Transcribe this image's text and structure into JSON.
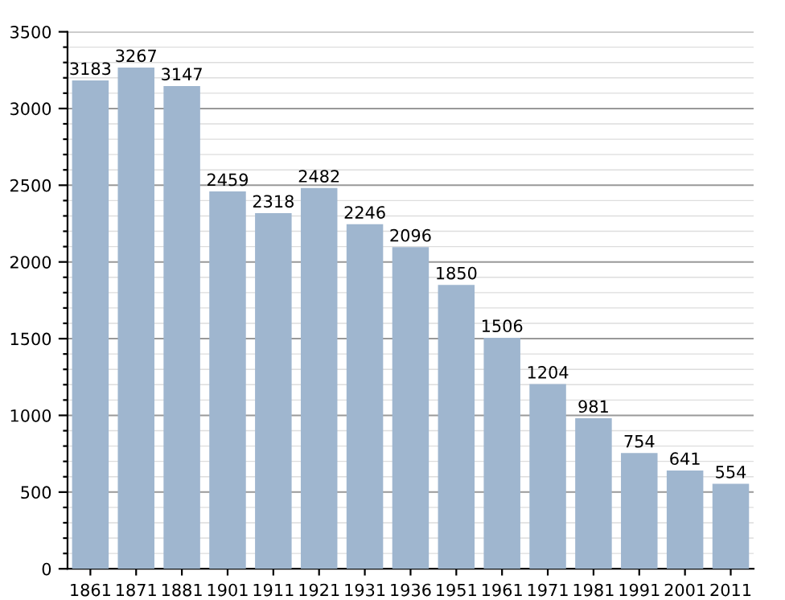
{
  "chart_data": {
    "type": "bar",
    "categories": [
      "1861",
      "1871",
      "1881",
      "1901",
      "1911",
      "1921",
      "1931",
      "1936",
      "1951",
      "1961",
      "1971",
      "1981",
      "1991",
      "2001",
      "2011"
    ],
    "values": [
      3183,
      3267,
      3147,
      2459,
      2318,
      2482,
      2246,
      2096,
      1850,
      1506,
      1204,
      981,
      754,
      641,
      554
    ],
    "color": "#9fb6cf",
    "ylim": [
      0,
      3500
    ],
    "yticks": [
      0,
      {
        "value": 100,
        "label": null
      },
      {
        "value": 200,
        "label": null
      },
      {
        "value": 300,
        "label": null
      },
      {
        "value": 400,
        "label": null
      },
      500,
      {
        "value": 600,
        "label": null
      },
      {
        "value": 700,
        "label": null
      },
      {
        "value": 800,
        "label": null
      },
      {
        "value": 900,
        "label": null
      },
      1000,
      {
        "value": 1100,
        "label": null
      },
      {
        "value": 1200,
        "label": null
      },
      {
        "value": 1300,
        "label": null
      },
      {
        "value": 1400,
        "label": null
      },
      1500,
      {
        "value": 1600,
        "label": null
      },
      {
        "value": 1700,
        "label": null
      },
      {
        "value": 1800,
        "label": null
      },
      {
        "value": 1900,
        "label": null
      },
      2000,
      {
        "value": 2100,
        "label": null
      },
      {
        "value": 2200,
        "label": null
      },
      {
        "value": 2300,
        "label": null
      },
      {
        "value": 2400,
        "label": null
      },
      2500,
      {
        "value": 2600,
        "label": null
      },
      {
        "value": 2700,
        "label": null
      },
      {
        "value": 2800,
        "label": null
      },
      {
        "value": 2900,
        "label": null
      },
      3000,
      {
        "value": 3100,
        "label": null
      },
      {
        "value": 3200,
        "label": null
      },
      {
        "value": 3300,
        "label": null
      },
      {
        "value": 3400,
        "label": null
      },
      3500
    ],
    "grid": "y",
    "data_labels": true
  }
}
